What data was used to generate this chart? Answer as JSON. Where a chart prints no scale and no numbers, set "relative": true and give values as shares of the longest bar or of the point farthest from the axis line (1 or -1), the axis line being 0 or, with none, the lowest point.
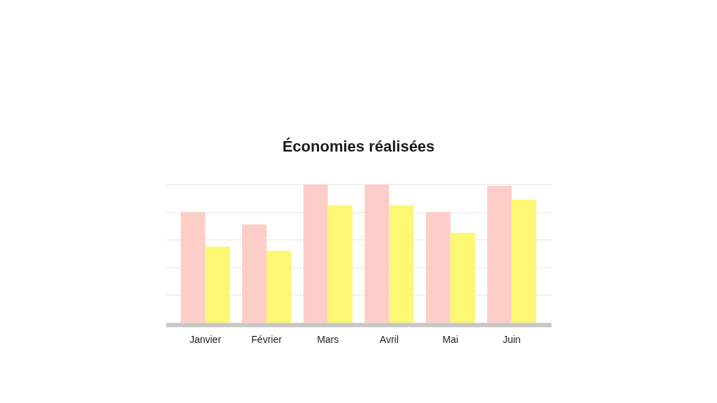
{
  "chart_data": {
    "type": "bar",
    "title": "Économies réalisées",
    "categories": [
      "Janvier",
      "Février",
      "Mars",
      "Avril",
      "Mai",
      "Juin"
    ],
    "relative": true,
    "series": [
      {
        "color": "#fdcdc8",
        "values": [
          0.8,
          0.71,
          1.0,
          1.0,
          0.8,
          0.99
        ]
      },
      {
        "color": "#fdf773",
        "values": [
          0.55,
          0.52,
          0.85,
          0.85,
          0.65,
          0.89
        ]
      }
    ],
    "grid": "y",
    "legend": false
  }
}
